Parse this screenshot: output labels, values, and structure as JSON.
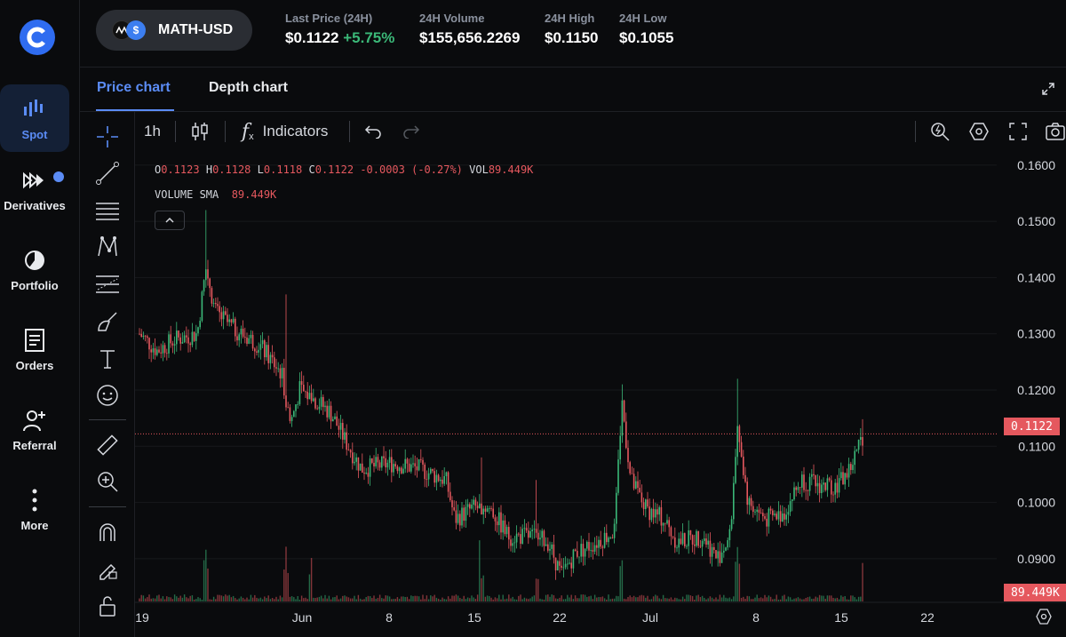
{
  "nav": {
    "items": [
      {
        "label": "Spot",
        "icon": "bar-chart-icon",
        "active": true
      },
      {
        "label": "Derivatives",
        "icon": "derivatives-icon"
      },
      {
        "label": "Portfolio",
        "icon": "pie-chart-icon"
      },
      {
        "label": "Orders",
        "icon": "document-icon"
      },
      {
        "label": "Referral",
        "icon": "add-user-icon"
      },
      {
        "label": "More",
        "icon": "more-dots-icon"
      }
    ]
  },
  "header": {
    "pair": "MATH-USD",
    "pair_quote_glyph": "$",
    "last_price_label": "Last Price (24H)",
    "last_price": "$0.1122",
    "last_change": "+5.75%",
    "volume_label": "24H Volume",
    "volume": "$155,656.2269",
    "high_label": "24H High",
    "high": "$0.1150",
    "low_label": "24H Low",
    "low": "$0.1055"
  },
  "tabs": {
    "price": "Price chart",
    "depth": "Depth chart"
  },
  "toolbar": {
    "interval": "1h",
    "fx_glyph": "f",
    "fx_sub": "x",
    "indicators": "Indicators"
  },
  "legend": {
    "o_label": "O",
    "o": "0.1123",
    "h_label": "H",
    "h": "0.1128",
    "l_label": "L",
    "l": "0.1118",
    "c_label": "C",
    "c": "0.1122",
    "change": "-0.0003 (-0.27%)",
    "vol_label": "VOL",
    "vol": "89.449K",
    "sma_label": "VOLUME SMA",
    "sma": "89.449K"
  },
  "colors": {
    "up": "#3bb878",
    "down": "#e5585e",
    "accent": "#5b8cf5",
    "background": "#0a0b0d"
  },
  "chart_data": {
    "type": "candlestick",
    "y_axis_ticks": [
      "0.1600",
      "0.1500",
      "0.1400",
      "0.1300",
      "0.1200",
      "0.1100",
      "0.1000",
      "0.0900"
    ],
    "x_axis_ticks": [
      "19",
      "Jun",
      "8",
      "15",
      "22",
      "Jul",
      "8",
      "15",
      "22"
    ],
    "ylim": [
      0.0835,
      0.1625
    ],
    "current_price": "0.1122",
    "current_volume": "89.449K",
    "price_series_approx": [
      {
        "x": "May 19",
        "close": 0.13
      },
      {
        "x": "May 21",
        "close": 0.127
      },
      {
        "x": "May 23",
        "close": 0.13
      },
      {
        "x": "May 24",
        "close": 0.135
      },
      {
        "x": "May 26",
        "close": 0.131
      },
      {
        "x": "May 28",
        "close": 0.128
      },
      {
        "x": "May 30",
        "close": 0.123
      },
      {
        "x": "Jun 1",
        "close": 0.116
      },
      {
        "x": "Jun 3",
        "close": 0.12
      },
      {
        "x": "Jun 5",
        "close": 0.115
      },
      {
        "x": "Jun 7",
        "close": 0.107
      },
      {
        "x": "Jun 10",
        "close": 0.106
      },
      {
        "x": "Jun 13",
        "close": 0.105
      },
      {
        "x": "Jun 15",
        "close": 0.097
      },
      {
        "x": "Jun 18",
        "close": 0.096
      },
      {
        "x": "Jun 20",
        "close": 0.093
      },
      {
        "x": "Jun 22",
        "close": 0.087
      },
      {
        "x": "Jun 24",
        "close": 0.092
      },
      {
        "x": "Jun 26",
        "close": 0.094
      },
      {
        "x": "Jun 27",
        "close": 0.113
      },
      {
        "x": "Jun 29",
        "close": 0.1
      },
      {
        "x": "Jul 1",
        "close": 0.096
      },
      {
        "x": "Jul 3",
        "close": 0.092
      },
      {
        "x": "Jul 5",
        "close": 0.09
      },
      {
        "x": "Jul 6",
        "close": 0.112
      },
      {
        "x": "Jul 8",
        "close": 0.098
      },
      {
        "x": "Jul 10",
        "close": 0.1
      },
      {
        "x": "Jul 12",
        "close": 0.104
      },
      {
        "x": "Jul 14",
        "close": 0.103
      },
      {
        "x": "Jul 16",
        "close": 0.106
      },
      {
        "x": "Jul 17",
        "close": 0.1122
      }
    ]
  }
}
